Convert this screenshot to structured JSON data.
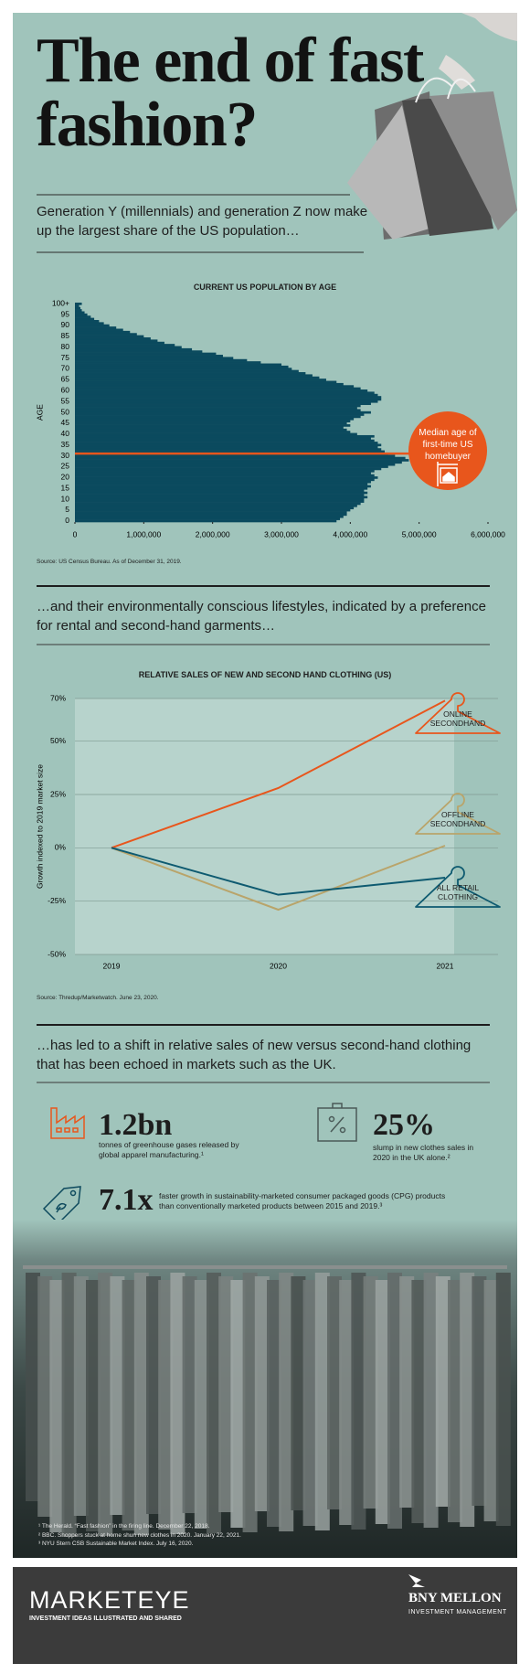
{
  "header": {
    "title": "The end of fast fashion?",
    "intro": "Generation Y (millennials) and generation Z now make up the largest share of the US population…"
  },
  "chart_data": [
    {
      "type": "barh",
      "title": "CURRENT US POPULATION BY AGE",
      "y_label": "AGE",
      "color": "#0b4a5e",
      "categories": [
        "0",
        null,
        null,
        null,
        null,
        "5",
        null,
        null,
        null,
        null,
        "10",
        null,
        null,
        null,
        null,
        "15",
        null,
        null,
        null,
        null,
        "20",
        null,
        null,
        null,
        null,
        "25",
        null,
        null,
        null,
        null,
        "30",
        null,
        null,
        null,
        null,
        "35",
        null,
        null,
        null,
        null,
        "40",
        null,
        null,
        null,
        null,
        "45",
        null,
        null,
        null,
        null,
        "50",
        null,
        null,
        null,
        null,
        "55",
        null,
        null,
        null,
        null,
        "60",
        null,
        null,
        null,
        null,
        "65",
        null,
        null,
        null,
        null,
        "70",
        null,
        null,
        null,
        null,
        "75",
        null,
        null,
        null,
        null,
        "80",
        null,
        null,
        null,
        null,
        "85",
        null,
        null,
        null,
        null,
        "90",
        null,
        null,
        null,
        null,
        "95",
        null,
        null,
        null,
        null,
        "100+"
      ],
      "values": [
        3800000,
        3850000,
        3900000,
        3950000,
        3950000,
        4000000,
        4050000,
        4100000,
        4150000,
        4200000,
        4200000,
        4250000,
        4200000,
        4250000,
        4200000,
        4250000,
        4300000,
        4250000,
        4300000,
        4350000,
        4400000,
        4350000,
        4300000,
        4350000,
        4450000,
        4550000,
        4650000,
        4750000,
        4850000,
        4800000,
        4650000,
        4550000,
        4500000,
        4450000,
        4400000,
        4450000,
        4400000,
        4350000,
        4300000,
        4350000,
        4100000,
        4000000,
        3950000,
        3900000,
        4000000,
        3950000,
        4000000,
        4050000,
        4150000,
        4200000,
        4300000,
        4150000,
        4100000,
        4150000,
        4300000,
        4400000,
        4450000,
        4450000,
        4400000,
        4350000,
        4250000,
        4150000,
        4050000,
        3900000,
        3800000,
        3650000,
        3550000,
        3450000,
        3350000,
        3250000,
        3150000,
        3100000,
        3000000,
        2700000,
        2500000,
        2300000,
        2150000,
        2050000,
        1850000,
        1700000,
        1550000,
        1450000,
        1300000,
        1200000,
        1100000,
        1000000,
        900000,
        800000,
        700000,
        600000,
        500000,
        420000,
        350000,
        280000,
        230000,
        180000,
        140000,
        100000,
        80000,
        60000,
        100000
      ],
      "xlim": [
        0,
        6000000
      ],
      "xticks": [
        0,
        {
          "value": 1000000,
          "label": "1,000,000"
        },
        {
          "value": 2000000,
          "label": "2,000,000"
        },
        {
          "value": 3000000,
          "label": "3,000,000"
        },
        {
          "value": 4000000,
          "label": "4,000,000"
        },
        {
          "value": 5000000,
          "label": "5,000,000"
        },
        {
          "value": 6000000,
          "label": "6,000,000"
        }
      ],
      "median_age": 31,
      "median_color": "#e8561c",
      "annotation": "Median age of first-time US homebuyer",
      "source": "Source: US Census Bureau. As of December 31, 2019."
    },
    {
      "type": "line",
      "title": "RELATIVE SALES OF NEW AND SECOND HAND CLOTHING (US)",
      "y_label": "Growth indexed to 2019 market size",
      "categories": [
        "2019",
        "2020",
        "2021"
      ],
      "series": [
        {
          "name": "ONLINE SECONDHAND",
          "color": "#e8561c",
          "values": [
            0,
            28,
            69
          ]
        },
        {
          "name": "OFFLINE SECONDHAND",
          "color": "#b9a46a",
          "values": [
            0,
            -29,
            1
          ]
        },
        {
          "name": "ALL RETAIL CLOTHING",
          "color": "#0e5a70",
          "values": [
            0,
            -22,
            -14
          ]
        }
      ],
      "ylim": [
        -50,
        70
      ],
      "yticks": [
        {
          "value": -50,
          "label": "-50%"
        },
        {
          "value": -25,
          "label": "-25%"
        },
        {
          "value": 0,
          "label": "0%"
        },
        {
          "value": 25,
          "label": "25%"
        },
        {
          "value": 50,
          "label": "50%"
        },
        {
          "value": 70,
          "label": "70%"
        }
      ],
      "grid": true,
      "source": "Source: Thredup/Marketwatch. June 23, 2020."
    }
  ],
  "section2": "…and their environmentally conscious lifestyles, indicated by a preference for rental and second-hand garments…",
  "section3": "…has led to a shift in relative sales of new versus second-hand clothing that has been echoed in markets such as the UK.",
  "stats": [
    {
      "value": "1.2bn",
      "text": "tonnes of greenhouse gases released by global apparel manufacturing.¹"
    },
    {
      "value": "25%",
      "text": "slump in new clothes sales in 2020 in the UK alone.²"
    },
    {
      "value": "7.1x",
      "text": "faster growth in sustainability-marketed consumer packaged goods (CPG) products than conventionally marketed products between 2015 and 2019.³"
    }
  ],
  "footnotes": [
    "¹ The Herald. “Fast fashion” in the firing line. December 22, 2018.",
    "² BBC. Shoppers stuck at home shun new clothes in 2020. January 22, 2021.",
    "³ NYU Stern CSB Sustainable Market Index. July 16, 2020."
  ],
  "footer": {
    "brand": "MARKETEYE",
    "tagline": "INVESTMENT IDEAS ILLUSTRATED AND SHARED",
    "company": "BNY MELLON",
    "division": "INVESTMENT MANAGEMENT"
  }
}
